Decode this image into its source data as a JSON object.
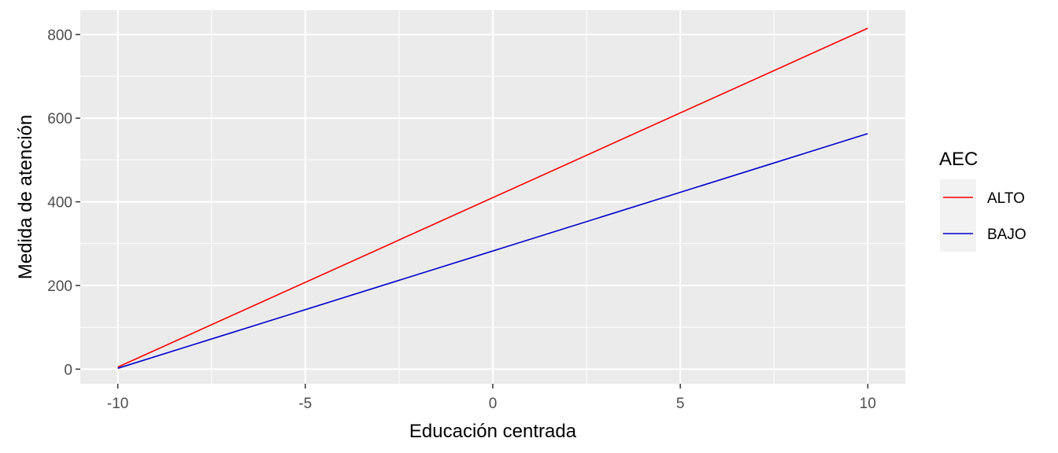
{
  "chart_data": {
    "type": "line",
    "title": "",
    "xlabel": "Educación centrada",
    "ylabel": "Medida de atención",
    "xlim": [
      -11,
      11
    ],
    "ylim": [
      -35,
      858
    ],
    "x_ticks": [
      -10,
      -5,
      0,
      5,
      10
    ],
    "x_tick_labels": [
      "-10",
      "-5",
      "0",
      "5",
      "10"
    ],
    "y_ticks": [
      0,
      200,
      400,
      600,
      800
    ],
    "y_tick_labels": [
      "0",
      "200",
      "400",
      "600",
      "800"
    ],
    "grid": true,
    "legend": {
      "title": "AEC",
      "position": "right"
    },
    "series": [
      {
        "name": "ALTO",
        "color": "#ff0000",
        "x": [
          -10,
          10
        ],
        "values": [
          5,
          815
        ]
      },
      {
        "name": "BAJO",
        "color": "#0000cd",
        "x": [
          -10,
          10
        ],
        "values": [
          2,
          563
        ]
      }
    ]
  }
}
